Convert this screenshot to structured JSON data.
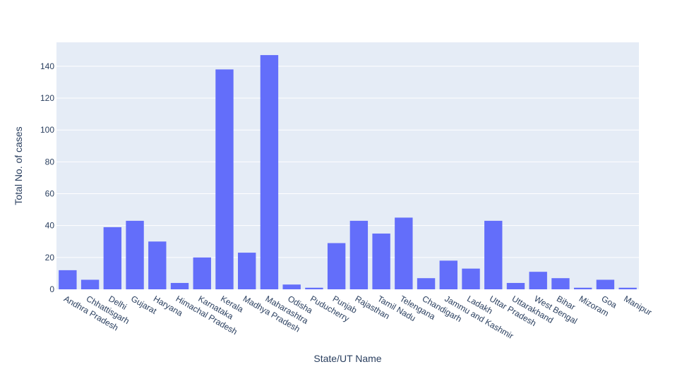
{
  "chart_data": {
    "type": "bar",
    "xlabel": "State/UT Name",
    "ylabel": "Total No. of cases",
    "ylim": [
      0,
      155
    ],
    "yticks": [
      0,
      20,
      40,
      60,
      80,
      100,
      120,
      140
    ],
    "grid": true,
    "bar_color": "#636efa",
    "plot_bg": "#e5ecf6",
    "categories": [
      "Andhra Pradesh",
      "Chhattisgarh",
      "Delhi",
      "Gujarat",
      "Haryana",
      "Himachal Pradesh",
      "Karnataka",
      "Kerala",
      "Madhya Pradesh",
      "Maharashtra",
      "Odisha",
      "Puducherry",
      "Punjab",
      "Rajasthan",
      "Tamil Nadu",
      "Telengana",
      "Chandigarh",
      "Jammu and Kashmir",
      "Ladakh",
      "Uttar Pradesh",
      "Uttarakhand",
      "West Bengal",
      "Bihar",
      "Mizoram",
      "Goa",
      "Manipur"
    ],
    "values": [
      12,
      6,
      39,
      43,
      30,
      4,
      20,
      138,
      23,
      147,
      3,
      1,
      29,
      43,
      35,
      45,
      7,
      18,
      13,
      43,
      4,
      11,
      7,
      1,
      6,
      1
    ]
  }
}
